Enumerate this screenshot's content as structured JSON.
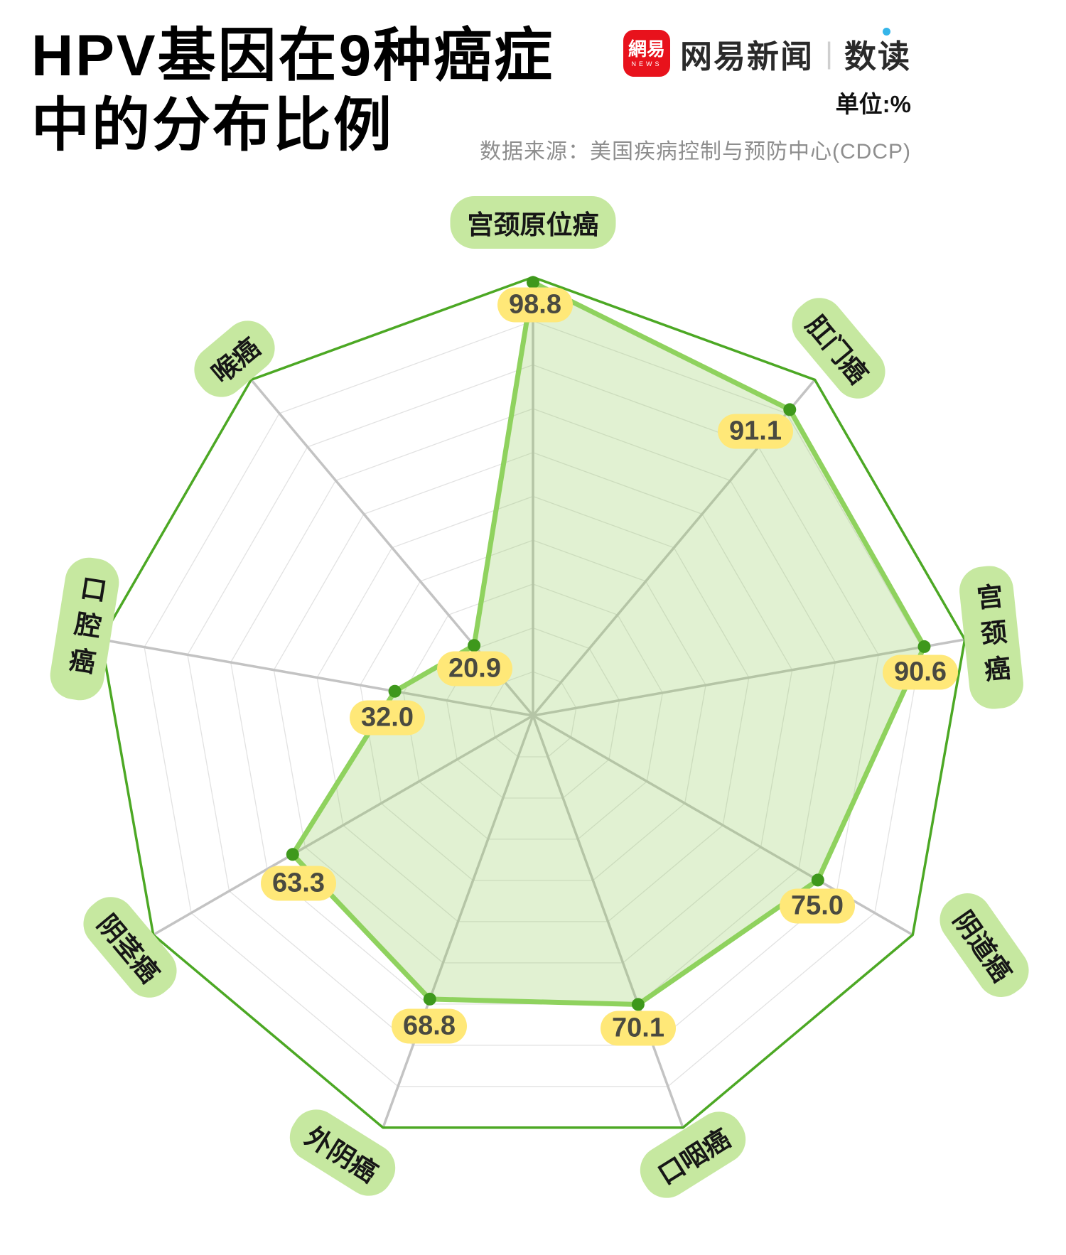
{
  "header": {
    "title_line1": "HPV基因在9种癌症",
    "title_line2": "中的分布比例",
    "unit_label": "单位:%",
    "source_label": "数据来源：美国疾病控制与预防中心(CDCP)"
  },
  "brand": {
    "logo_text_cn": "網易",
    "logo_text_en": "NEWS",
    "news_name": "网易新闻",
    "divider": "|",
    "sub_brand": "数读"
  },
  "chart_data": {
    "type": "radar",
    "title": "HPV基因在9种癌症中的分布比例",
    "unit": "%",
    "axis_max": 100,
    "grid_rings": 10,
    "legend_position": "none",
    "categories": [
      "宫颈原位癌",
      "肛门癌",
      "宫颈癌",
      "阴道癌",
      "口咽癌",
      "外阴癌",
      "阴茎癌",
      "口腔癌",
      "喉癌"
    ],
    "values": [
      98.8,
      91.1,
      90.6,
      75.0,
      70.1,
      68.8,
      63.3,
      32.0,
      20.9
    ]
  },
  "colors": {
    "brand_red": "#e8121c",
    "brand_blue": "#35b5e9",
    "label_pill_bg": "#c6e8a0",
    "value_badge_bg": "#ffe878",
    "value_text": "#4a4a40",
    "data_fill": "rgba(143,205,90,0.27)",
    "data_stroke": "#8fd25e",
    "dot": "#3e981c",
    "outer_ring": "#4ca824",
    "spoke": "#c3c3c3",
    "ring": "#e2e2e2"
  }
}
